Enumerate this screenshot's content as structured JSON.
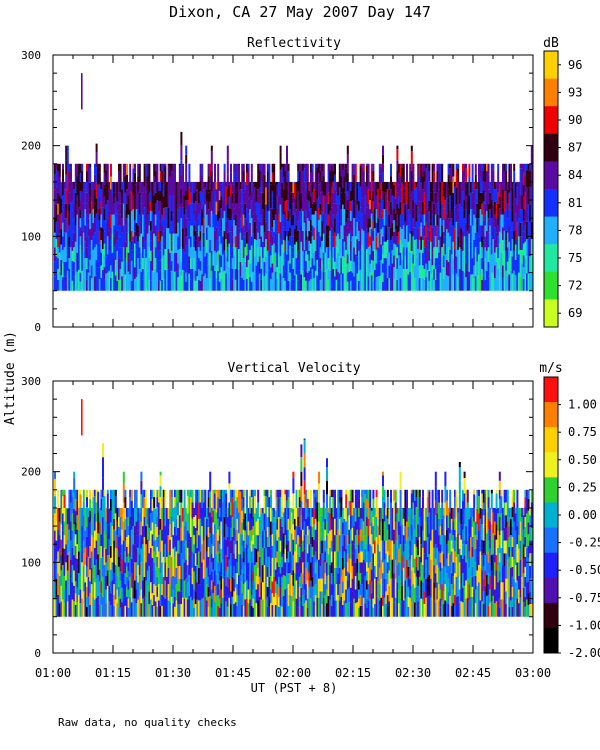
{
  "title": "Dixon, CA 27 May 2007  Day 147",
  "ylabel": "Altitude (m)",
  "xlabel": "UT  (PST + 8)",
  "footnote": "Raw data, no quality checks",
  "x_ticks": [
    "01:00",
    "01:15",
    "01:30",
    "01:45",
    "02:00",
    "02:15",
    "02:30",
    "02:45",
    "03:00"
  ],
  "chart_data": [
    {
      "type": "heatmap",
      "title": "Reflectivity",
      "unit": "dB",
      "xlim": [
        "01:00",
        "03:00"
      ],
      "ylim": [
        0,
        300
      ],
      "y_ticks": [
        0,
        100,
        200,
        300
      ],
      "colorbar": {
        "labels": [
          "96",
          "93",
          "90",
          "87",
          "84",
          "81",
          "78",
          "75",
          "72",
          "69"
        ],
        "colors": [
          "#ffd000",
          "#ff8000",
          "#ee0000",
          "#300010",
          "#5a0aa0",
          "#1430ff",
          "#20b0ff",
          "#20e8a0",
          "#30e030",
          "#c8ff20"
        ]
      },
      "data_extent": {
        "alt_min": 40,
        "alt_typical_top": [
          160,
          180
        ],
        "alt_max": 280
      }
    },
    {
      "type": "heatmap",
      "title": "Vertical Velocity",
      "unit": "m/s",
      "xlim": [
        "01:00",
        "03:00"
      ],
      "ylim": [
        0,
        300
      ],
      "y_ticks": [
        0,
        100,
        200,
        300
      ],
      "colorbar": {
        "labels": [
          "1.00",
          "0.75",
          "0.50",
          "0.25",
          "0.00",
          "-0.25",
          "-0.50",
          "-0.75",
          "-1.00",
          "-2.00"
        ],
        "colors": [
          "#ff1010",
          "#ff8000",
          "#ffd000",
          "#f0f020",
          "#30d030",
          "#00b0d0",
          "#1870ff",
          "#2020ff",
          "#5010b0",
          "#300010",
          "#000000"
        ]
      },
      "data_extent": {
        "alt_min": 40,
        "alt_typical_top": [
          160,
          180
        ],
        "alt_max": 280
      }
    }
  ]
}
